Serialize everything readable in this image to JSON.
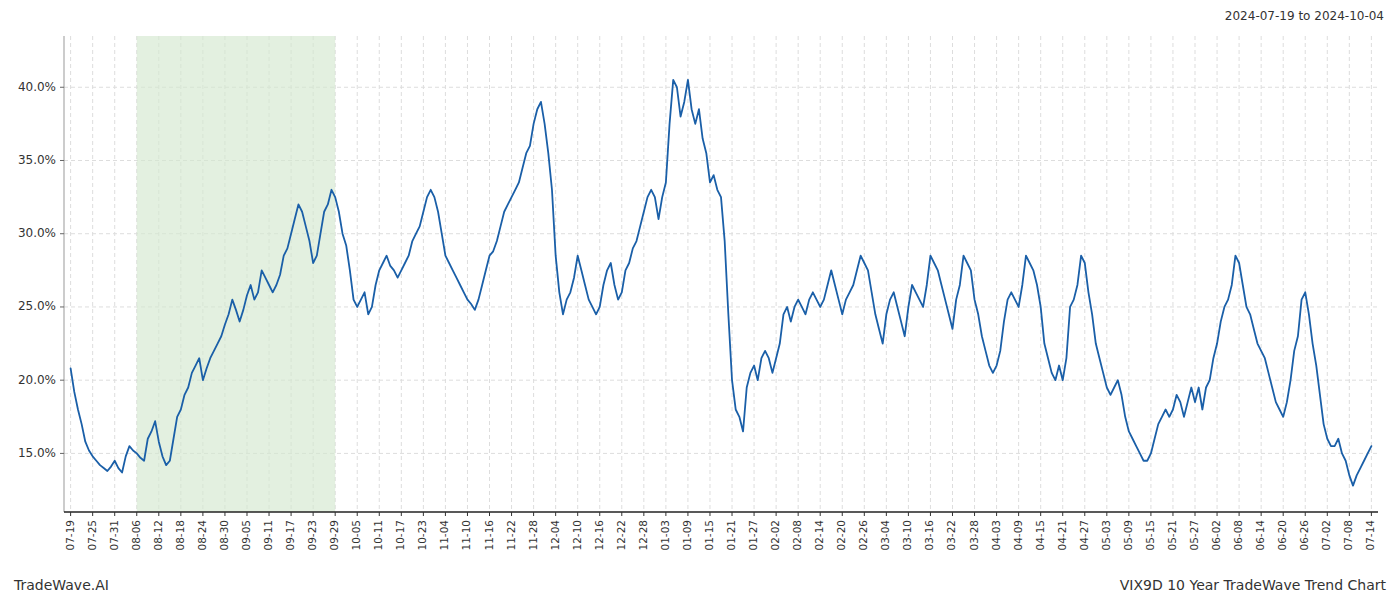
{
  "chart_data": {
    "type": "line",
    "title": "VIX9D 10 Year TradeWave Trend Chart",
    "subtitle": "2024-07-19 to 2024-10-04",
    "annotations": [
      "TradeWave.AI"
    ],
    "color": "#1a5fa8",
    "grid": true,
    "ylim": [
      11.0,
      43.5
    ],
    "yticks": [
      {
        "value": 15.0,
        "label": "15.0%"
      },
      {
        "value": 20.0,
        "label": "20.0%"
      },
      {
        "value": 25.0,
        "label": "25.0%"
      },
      {
        "value": 30.0,
        "label": "30.0%"
      },
      {
        "value": 35.0,
        "label": "35.0%"
      },
      {
        "value": 40.0,
        "label": "40.0%"
      }
    ],
    "shaded_span": {
      "from": "08-06",
      "to": "09-29",
      "color": "#d4e8d0"
    },
    "categories": [
      "07-19",
      null,
      null,
      null,
      null,
      null,
      "07-25",
      null,
      null,
      null,
      null,
      null,
      "07-31",
      null,
      null,
      null,
      null,
      null,
      "08-06",
      null,
      null,
      null,
      null,
      null,
      "08-12",
      null,
      null,
      null,
      null,
      null,
      "08-18",
      null,
      null,
      null,
      null,
      null,
      "08-24",
      null,
      null,
      null,
      null,
      null,
      "08-30",
      null,
      null,
      null,
      null,
      null,
      "09-05",
      null,
      null,
      null,
      null,
      null,
      "09-11",
      null,
      null,
      null,
      null,
      null,
      "09-17",
      null,
      null,
      null,
      null,
      null,
      "09-23",
      null,
      null,
      null,
      null,
      null,
      "09-29",
      null,
      null,
      null,
      null,
      null,
      "10-05",
      null,
      null,
      null,
      null,
      null,
      "10-11",
      null,
      null,
      null,
      null,
      null,
      "10-17",
      null,
      null,
      null,
      null,
      null,
      "10-23",
      null,
      null,
      null,
      null,
      null,
      "11-04",
      null,
      null,
      null,
      null,
      null,
      "11-10",
      null,
      null,
      null,
      null,
      null,
      "11-16",
      null,
      null,
      null,
      null,
      null,
      "11-22",
      null,
      null,
      null,
      null,
      null,
      "11-28",
      null,
      null,
      null,
      null,
      null,
      "12-04",
      null,
      null,
      null,
      null,
      null,
      "12-10",
      null,
      null,
      null,
      null,
      null,
      "12-16",
      null,
      null,
      null,
      null,
      null,
      "12-22",
      null,
      null,
      null,
      null,
      null,
      "12-28",
      null,
      null,
      null,
      null,
      null,
      "01-03",
      null,
      null,
      null,
      null,
      null,
      "01-09",
      null,
      null,
      null,
      null,
      null,
      "01-15",
      null,
      null,
      null,
      null,
      null,
      "01-21",
      null,
      null,
      null,
      null,
      null,
      "01-27",
      null,
      null,
      null,
      null,
      null,
      "02-02",
      null,
      null,
      null,
      null,
      null,
      "02-08",
      null,
      null,
      null,
      null,
      null,
      "02-14",
      null,
      null,
      null,
      null,
      null,
      "02-20",
      null,
      null,
      null,
      null,
      null,
      "02-26",
      null,
      null,
      null,
      null,
      null,
      "03-04",
      null,
      null,
      null,
      null,
      null,
      "03-10",
      null,
      null,
      null,
      null,
      null,
      "03-16",
      null,
      null,
      null,
      null,
      null,
      "03-22",
      null,
      null,
      null,
      null,
      null,
      "03-28",
      null,
      null,
      null,
      null,
      null,
      "04-03",
      null,
      null,
      null,
      null,
      null,
      "04-09",
      null,
      null,
      null,
      null,
      null,
      "04-15",
      null,
      null,
      null,
      null,
      null,
      "04-21",
      null,
      null,
      null,
      null,
      null,
      "04-27",
      null,
      null,
      null,
      null,
      null,
      "05-03",
      null,
      null,
      null,
      null,
      null,
      "05-09",
      null,
      null,
      null,
      null,
      null,
      "05-15",
      null,
      null,
      null,
      null,
      null,
      "05-21",
      null,
      null,
      null,
      null,
      null,
      "05-27",
      null,
      null,
      null,
      null,
      null,
      "06-02",
      null,
      null,
      null,
      null,
      null,
      "06-08",
      null,
      null,
      null,
      null,
      null,
      "06-14",
      null,
      null,
      null,
      null,
      null,
      "06-20",
      null,
      null,
      null,
      null,
      null,
      "06-26",
      null,
      null,
      null,
      null,
      null,
      "07-02",
      null,
      null,
      null,
      null,
      null,
      "07-08",
      null,
      null,
      null,
      null,
      null,
      "07-14"
    ],
    "values": [
      20.8,
      19.2,
      18.0,
      17.0,
      15.8,
      15.2,
      14.8,
      14.5,
      14.2,
      14.0,
      13.8,
      14.1,
      14.5,
      14.0,
      13.7,
      14.8,
      15.5,
      15.2,
      15.0,
      14.7,
      14.5,
      16.0,
      16.5,
      17.2,
      15.8,
      14.8,
      14.2,
      14.5,
      16.0,
      17.5,
      18.0,
      19.0,
      19.5,
      20.5,
      21.0,
      21.5,
      20.0,
      20.8,
      21.5,
      22.0,
      22.5,
      23.0,
      23.8,
      24.5,
      25.5,
      24.8,
      24.0,
      24.8,
      25.8,
      26.5,
      25.5,
      26.0,
      27.5,
      27.0,
      26.5,
      26.0,
      26.5,
      27.2,
      28.5,
      29.0,
      30.0,
      31.0,
      32.0,
      31.5,
      30.5,
      29.5,
      28.0,
      28.5,
      30.0,
      31.5,
      32.0,
      33.0,
      32.5,
      31.5,
      30.0,
      29.2,
      27.5,
      25.5,
      25.0,
      25.5,
      26.0,
      24.5,
      25.0,
      26.5,
      27.5,
      28.0,
      28.5,
      27.8,
      27.5,
      27.0,
      27.5,
      28.0,
      28.5,
      29.5,
      30.0,
      30.5,
      31.5,
      32.5,
      33.0,
      32.5,
      31.5,
      30.0,
      28.5,
      28.0,
      27.5,
      27.0,
      26.5,
      26.0,
      25.5,
      25.2,
      24.8,
      25.5,
      26.5,
      27.5,
      28.5,
      28.8,
      29.5,
      30.5,
      31.5,
      32.0,
      32.5,
      33.0,
      33.5,
      34.5,
      35.5,
      36.0,
      37.5,
      38.5,
      39.0,
      37.5,
      35.5,
      33.0,
      28.5,
      26.0,
      24.5,
      25.5,
      26.0,
      27.0,
      28.5,
      27.5,
      26.5,
      25.5,
      25.0,
      24.5,
      25.0,
      26.5,
      27.5,
      28.0,
      26.5,
      25.5,
      26.0,
      27.5,
      28.0,
      29.0,
      29.5,
      30.5,
      31.5,
      32.5,
      33.0,
      32.5,
      31.0,
      32.5,
      33.5,
      37.5,
      40.5,
      40.0,
      38.0,
      39.0,
      40.5,
      38.5,
      37.5,
      38.5,
      36.5,
      35.5,
      33.5,
      34.0,
      33.0,
      32.5,
      29.5,
      24.5,
      20.0,
      18.0,
      17.5,
      16.5,
      19.5,
      20.5,
      21.0,
      20.0,
      21.5,
      22.0,
      21.5,
      20.5,
      21.5,
      22.5,
      24.5,
      25.0,
      24.0,
      25.0,
      25.5,
      25.0,
      24.5,
      25.5,
      26.0,
      25.5,
      25.0,
      25.5,
      26.5,
      27.5,
      26.5,
      25.5,
      24.5,
      25.5,
      26.0,
      26.5,
      27.5,
      28.5,
      28.0,
      27.5,
      26.0,
      24.5,
      23.5,
      22.5,
      24.5,
      25.5,
      26.0,
      25.0,
      24.0,
      23.0,
      25.0,
      26.5,
      26.0,
      25.5,
      25.0,
      26.5,
      28.5,
      28.0,
      27.5,
      26.5,
      25.5,
      24.5,
      23.5,
      25.5,
      26.5,
      28.5,
      28.0,
      27.5,
      25.5,
      24.5,
      23.0,
      22.0,
      21.0,
      20.5,
      21.0,
      22.0,
      24.0,
      25.5,
      26.0,
      25.5,
      25.0,
      26.5,
      28.5,
      28.0,
      27.5,
      26.5,
      25.0,
      22.5,
      21.5,
      20.5,
      20.0,
      21.0,
      20.0,
      21.5,
      25.0,
      25.5,
      26.5,
      28.5,
      28.0,
      26.0,
      24.5,
      22.5,
      21.5,
      20.5,
      19.5,
      19.0,
      19.5,
      20.0,
      19.0,
      17.5,
      16.5,
      16.0,
      15.5,
      15.0,
      14.5,
      14.5,
      15.0,
      16.0,
      17.0,
      17.5,
      18.0,
      17.5,
      18.0,
      19.0,
      18.5,
      17.5,
      18.5,
      19.5,
      18.5,
      19.5,
      18.0,
      19.5,
      20.0,
      21.5,
      22.5,
      24.0,
      25.0,
      25.5,
      26.5,
      28.5,
      28.0,
      26.5,
      25.0,
      24.5,
      23.5,
      22.5,
      22.0,
      21.5,
      20.5,
      19.5,
      18.5,
      18.0,
      17.5,
      18.5,
      20.0,
      22.0,
      23.0,
      25.5,
      26.0,
      24.5,
      22.5,
      21.0,
      19.0,
      17.0,
      16.0,
      15.5,
      15.5,
      16.0,
      15.0,
      14.5,
      13.5,
      12.8,
      13.5,
      14.0,
      14.5,
      15.0,
      15.5
    ]
  }
}
